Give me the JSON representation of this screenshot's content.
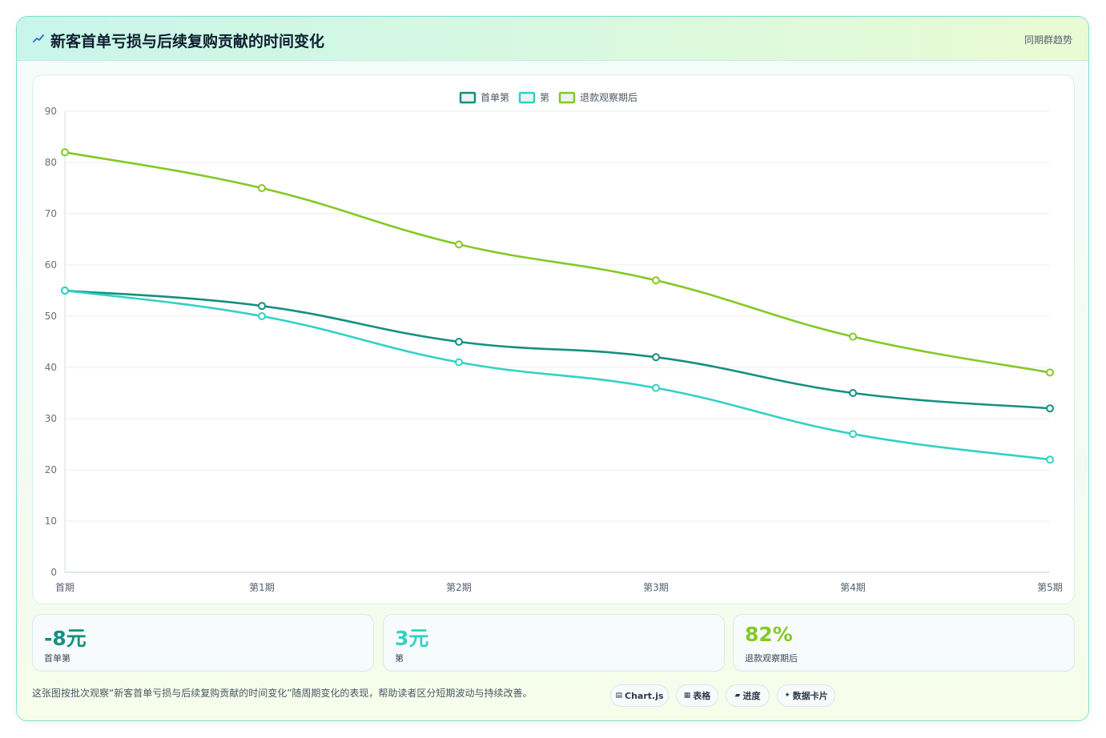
{
  "header": {
    "icon": "trend-line-icon",
    "title": "新客首单亏损与后续复购贡献的时间变化",
    "badge": "同期群趋势"
  },
  "chart_data": {
    "type": "line",
    "categories": [
      "首期",
      "第1期",
      "第2期",
      "第3期",
      "第4期",
      "第5期"
    ],
    "series": [
      {
        "name": "首单第",
        "values": [
          55,
          52,
          45,
          42,
          35,
          32
        ],
        "color": "#14907f"
      },
      {
        "name": "第",
        "values": [
          55,
          50,
          41,
          36,
          27,
          22
        ],
        "color": "#33d1c4"
      },
      {
        "name": "退款观察期后",
        "values": [
          82,
          75,
          64,
          57,
          46,
          39
        ],
        "color": "#84c925"
      }
    ],
    "y_ticks": [
      "0",
      "10",
      "20",
      "30",
      "40",
      "50",
      "60",
      "70",
      "80",
      "90"
    ],
    "ylim": [
      0,
      90
    ],
    "grid": true,
    "legend_position": "top-center"
  },
  "stats": [
    {
      "value": "-8元",
      "label": "首单第",
      "color": "#14907f"
    },
    {
      "value": "3元",
      "label": "第",
      "color": "#33d1c4"
    },
    {
      "value": "82%",
      "label": "退款观察期后",
      "color": "#84c925"
    }
  ],
  "footer": {
    "description": "这张图按批次观察“新客首单亏损与后续复购贡献的时间变化”随周期变化的表现，帮助读者区分短期波动与持续改善。",
    "chips": [
      {
        "icon": "chart-icon",
        "glyph": "▤",
        "label": "Chart.js"
      },
      {
        "icon": "table-icon",
        "glyph": "▦",
        "label": "表格"
      },
      {
        "icon": "progress-icon",
        "glyph": "▰",
        "label": "进度"
      },
      {
        "icon": "sparkle-icon",
        "glyph": "✦",
        "label": "数据卡片"
      }
    ]
  }
}
